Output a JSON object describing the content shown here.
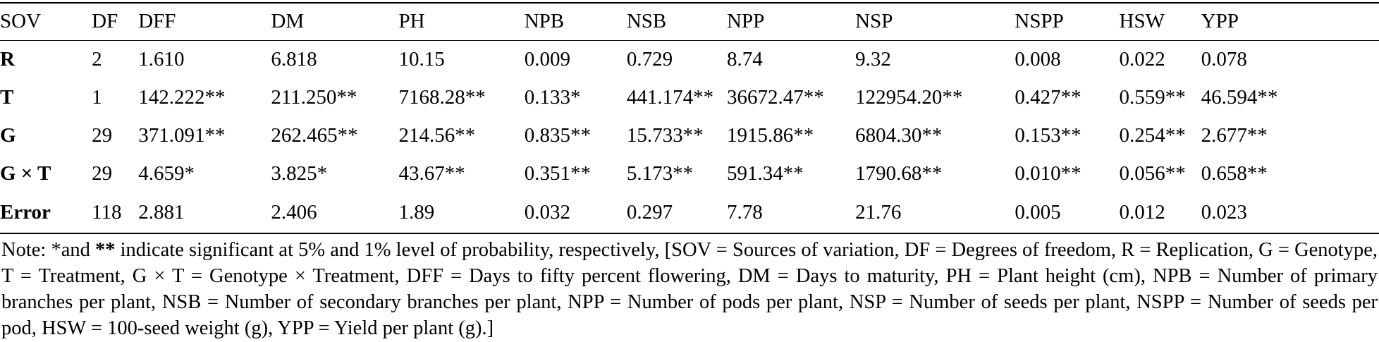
{
  "table": {
    "headers": [
      "SOV",
      "DF",
      "DFF",
      "DM",
      "PH",
      "NPB",
      "NSB",
      "NPP",
      "NSP",
      "NSPP",
      "HSW",
      "YPP"
    ],
    "rows": [
      {
        "sov": "R",
        "cells": [
          "2",
          "1.610",
          "6.818",
          "10.15",
          "0.009",
          "0.729",
          "8.74",
          "9.32",
          "0.008",
          "0.022",
          "0.078"
        ]
      },
      {
        "sov": "T",
        "cells": [
          "1",
          "142.222**",
          "211.250**",
          "7168.28**",
          "0.133*",
          "441.174**",
          "36672.47**",
          "122954.20**",
          "0.427**",
          "0.559**",
          "46.594**"
        ]
      },
      {
        "sov": "G",
        "cells": [
          "29",
          "371.091**",
          "262.465**",
          "214.56**",
          "0.835**",
          "15.733**",
          "1915.86**",
          "6804.30**",
          "0.153**",
          "0.254**",
          "2.677**"
        ]
      },
      {
        "sov": "G × T",
        "cells": [
          "29",
          "4.659*",
          "3.825*",
          "43.67**",
          "0.351**",
          "5.173**",
          "591.34**",
          "1790.68**",
          "0.010**",
          "0.056**",
          "0.658**"
        ]
      },
      {
        "sov": "Error",
        "cells": [
          "118",
          "2.881",
          "2.406",
          "1.89",
          "0.032",
          "0.297",
          "7.78",
          "21.76",
          "0.005",
          "0.012",
          "0.023"
        ]
      }
    ]
  },
  "note": {
    "prefix": "Note: *and ",
    "bold_marker": "**",
    "text": " indicate significant at 5% and 1% level of probability, respectively, [SOV = Sources of variation, DF = Degrees of freedom, R = Replication, G = Genotype, T = Treatment, G × T = Genotype × Treatment, DFF = Days to fifty percent flowering, DM = Days to maturity, PH = Plant height (cm), NPB = Number of primary branches per plant, NSB = Number of secondary branches per plant, NPP = Number of pods per plant, NSP = Number of seeds per plant, NSPP = Number of seeds per pod, HSW = 100-seed weight (g), YPP = Yield per plant (g).]"
  }
}
